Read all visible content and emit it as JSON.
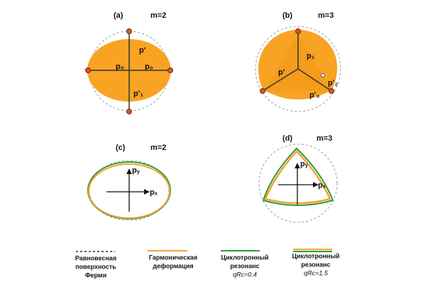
{
  "panels": [
    {
      "label": "(a)",
      "m": "m=2",
      "labels": [
        "p'",
        "p₀",
        "p₀",
        "p'₁"
      ]
    },
    {
      "label": "(b)",
      "m": "m=3",
      "labels": [
        "p₁",
        "p'",
        "p'₂",
        "p'₃"
      ]
    },
    {
      "label": "(c)",
      "m": "m=2",
      "labels": [
        "pᵧ",
        "pₓ"
      ]
    },
    {
      "label": "(d)",
      "m": "m=3",
      "labels": [
        "pᵧ",
        "pₓ"
      ]
    }
  ],
  "legend": [
    {
      "lines": [
        "Равновесная",
        "поверхность",
        "Ферми"
      ]
    },
    {
      "lines": [
        "Гармоническая",
        "деформация"
      ]
    },
    {
      "lines": [
        "Циклотронный",
        "резонанс",
        "qRc=0.4"
      ]
    },
    {
      "lines": [
        "Циклотронный",
        "резонанс",
        "qRc=1.5"
      ]
    }
  ]
}
